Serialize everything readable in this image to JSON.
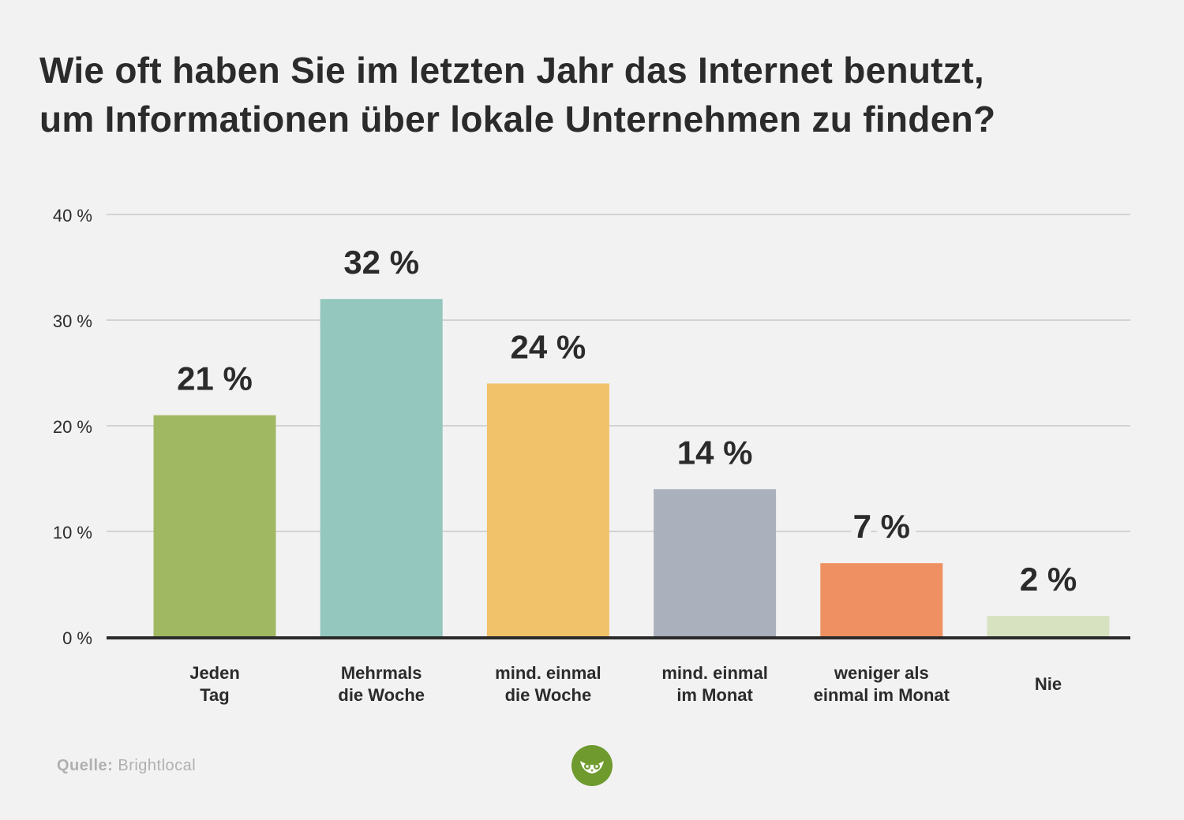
{
  "title_lines": [
    "Wie oft haben Sie im letzten Jahr das Internet benutzt,",
    "um Informationen über lokale Unternehmen zu finden?"
  ],
  "chart_data": {
    "type": "bar",
    "title": "Wie oft haben Sie im letzten Jahr das Internet benutzt, um Informationen über lokale Unternehmen zu finden?",
    "categories": [
      [
        "Jeden",
        "Tag"
      ],
      [
        "Mehrmals",
        "die Woche"
      ],
      [
        "mind. einmal",
        "die Woche"
      ],
      [
        "mind. einmal",
        "im Monat"
      ],
      [
        "weniger als",
        "einmal im Monat"
      ],
      [
        "Nie"
      ]
    ],
    "values": [
      21,
      32,
      24,
      14,
      7,
      2
    ],
    "value_labels": [
      "21 %",
      "32 %",
      "24 %",
      "14 %",
      "7 %",
      "2 %"
    ],
    "colors": [
      "#a1b863",
      "#94c7be",
      "#f1c269",
      "#aab0bc",
      "#ef9062",
      "#d6e2c0"
    ],
    "ylim": [
      0,
      40
    ],
    "yticks": [
      0,
      10,
      20,
      30,
      40
    ],
    "ytick_labels": [
      "0 %",
      "10 %",
      "20 %",
      "30 %",
      "40 %"
    ],
    "grid": true
  },
  "source": {
    "label": "Quelle:",
    "value": "Brightlocal"
  },
  "logo": {
    "icon": "owl-icon",
    "color": "#6f9a2e"
  }
}
